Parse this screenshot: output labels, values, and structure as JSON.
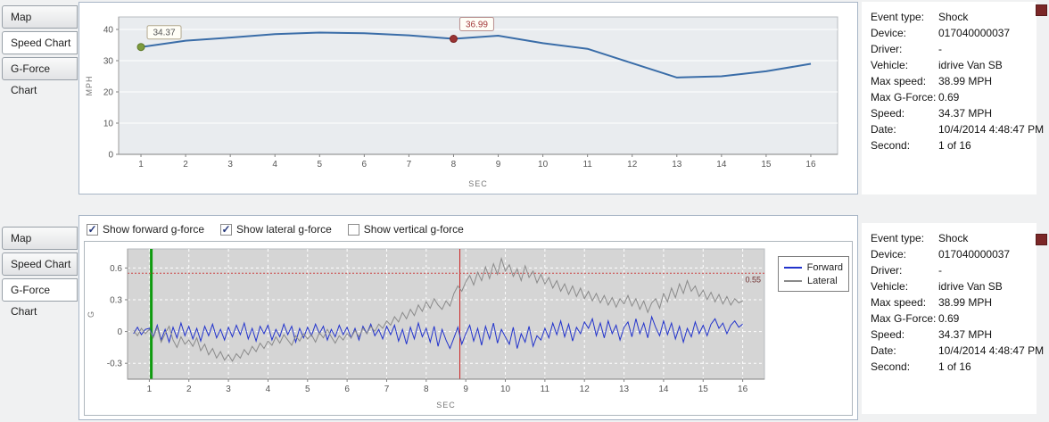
{
  "tabs": [
    {
      "label": "Map"
    },
    {
      "label": "Speed Chart"
    },
    {
      "label": "G-Force Chart"
    }
  ],
  "top_panel": {
    "selected_tab": "Speed Chart"
  },
  "bottom_panel": {
    "selected_tab": "G-Force Chart",
    "checkboxes": [
      {
        "label": "Show forward g-force",
        "checked": true
      },
      {
        "label": "Show lateral g-force",
        "checked": true
      },
      {
        "label": "Show vertical g-force",
        "checked": false
      }
    ]
  },
  "info_panel": {
    "rows": [
      {
        "label": "Event type:",
        "value": "Shock"
      },
      {
        "label": "Device:",
        "value": "017040000037"
      },
      {
        "label": "Driver:",
        "value": "-"
      },
      {
        "label": "Vehicle:",
        "value": "idrive Van SB"
      },
      {
        "label": "Max speed:",
        "value": "38.99 MPH"
      },
      {
        "label": "Max G-Force:",
        "value": "0.69"
      },
      {
        "label": "Speed:",
        "value": "34.37 MPH"
      },
      {
        "label": "Date:",
        "value": "10/4/2014 4:48:47 PM"
      },
      {
        "label": "Second:",
        "value": "1 of 16"
      }
    ]
  },
  "chart_data": [
    {
      "type": "line",
      "name": "speed-chart",
      "xlabel": "SEC",
      "ylabel": "MPH",
      "xticks": [
        1,
        2,
        3,
        4,
        5,
        6,
        7,
        8,
        9,
        10,
        11,
        12,
        13,
        14,
        15,
        16
      ],
      "yticks": [
        0,
        10,
        20,
        30,
        40
      ],
      "xlim": [
        0.5,
        16.6
      ],
      "ylim": [
        0,
        44
      ],
      "plot_bg": "#e9ecef",
      "grid": "horizontal-white",
      "x": [
        1,
        2,
        3,
        4,
        5,
        6,
        7,
        8,
        9,
        10,
        11,
        12,
        13,
        14,
        15,
        16
      ],
      "series": [
        {
          "name": "Speed",
          "color": "#3a6da8",
          "width": 2,
          "values": [
            34.37,
            36.4,
            37.4,
            38.5,
            39.0,
            38.8,
            38.1,
            36.99,
            38.0,
            35.6,
            33.8,
            29.2,
            24.6,
            25.0,
            26.6,
            29.0
          ]
        }
      ],
      "markers": [
        {
          "x": 1,
          "y": 34.37,
          "label": "34.37",
          "fill": "#7d9b3d",
          "stroke": "#5f7a2a",
          "box_border": "#b3a98f",
          "text_color": "#555555"
        },
        {
          "x": 8,
          "y": 36.99,
          "label": "36.99",
          "fill": "#993333",
          "stroke": "#7a2424",
          "box_border": "#b98f8f",
          "text_color": "#a33b3b"
        }
      ]
    },
    {
      "type": "line",
      "name": "gforce-chart",
      "xlabel": "SEC",
      "ylabel": "G",
      "xticks": [
        1,
        2,
        3,
        4,
        5,
        6,
        7,
        8,
        9,
        10,
        11,
        12,
        13,
        14,
        15,
        16
      ],
      "yticks": [
        -0.3,
        0,
        0.3,
        0.6
      ],
      "xlim": [
        0.45,
        16.55
      ],
      "ylim": [
        -0.45,
        0.78
      ],
      "plot_bg": "#d5d5d5",
      "grid": "dashed-white-both",
      "x_start": 0.6,
      "x_step": 0.1,
      "reference_line": {
        "y": 0.55,
        "label": "0.55",
        "color": "#cc4444",
        "label_color": "#703030"
      },
      "vertical_lines": [
        {
          "x": 1.05,
          "color": "#0f9b0f",
          "width": 3
        },
        {
          "x": 8.85,
          "color": "#cc2222",
          "width": 1
        }
      ],
      "series": [
        {
          "name": "Forward",
          "color": "#2233cc",
          "width": 1,
          "values": [
            -0.02,
            0.04,
            -0.03,
            0.02,
            0.03,
            -0.05,
            0.06,
            -0.08,
            0.02,
            -0.1,
            0.04,
            -0.06,
            0.08,
            -0.04,
            0.05,
            -0.07,
            0.03,
            -0.09,
            0.05,
            -0.04,
            0.07,
            -0.06,
            0.02,
            -0.08,
            0.04,
            -0.05,
            0.06,
            -0.03,
            0.08,
            -0.07,
            0.03,
            -0.09,
            0.05,
            -0.02,
            0.06,
            -0.08,
            0.02,
            -0.05,
            0.07,
            -0.03,
            0.05,
            -0.1,
            0.03,
            -0.06,
            0.04,
            -0.04,
            0.07,
            -0.02,
            0.05,
            -0.08,
            0.02,
            -0.05,
            0.06,
            -0.03,
            0.04,
            -0.06,
            0.03,
            -0.08,
            0.05,
            -0.02,
            0.07,
            -0.04,
            0.02,
            -0.07,
            0.05,
            -0.03,
            0.06,
            -0.09,
            0.02,
            -0.12,
            0.04,
            -0.07,
            0.08,
            -0.05,
            0.03,
            -0.1,
            0.05,
            -0.14,
            0.02,
            -0.08,
            -0.16,
            -0.06,
            0.04,
            -0.12,
            -0.02,
            0.06,
            -0.09,
            0.03,
            -0.13,
            0.05,
            -0.07,
            0.08,
            -0.11,
            0.02,
            -0.05,
            -0.12,
            0.04,
            -0.16,
            -0.02,
            -0.1,
            0.05,
            -0.14,
            -0.04,
            -0.08,
            0.03,
            -0.06,
            0.08,
            -0.03,
            0.1,
            -0.05,
            0.07,
            -0.09,
            0.04,
            -0.02,
            0.09,
            0.03,
            0.12,
            -0.04,
            0.08,
            -0.06,
            0.1,
            -0.02,
            0.06,
            -0.08,
            0.04,
            0.09,
            -0.05,
            0.12,
            -0.02,
            0.08,
            -0.06,
            0.14,
            0.04,
            -0.04,
            0.1,
            -0.03,
            0.08,
            -0.07,
            0.05,
            -0.1,
            0.03,
            -0.05,
            0.09,
            -0.02,
            0.06,
            -0.04,
            0.07,
            0.12,
            0.03,
            0.08,
            -0.02,
            0.06,
            0.1,
            0.04,
            0.07
          ]
        },
        {
          "name": "Lateral",
          "color": "#8a8a8a",
          "width": 1,
          "values": [
            0.01,
            -0.04,
            0.03,
            -0.02,
            0.02,
            -0.06,
            0.04,
            -0.1,
            -0.02,
            0.05,
            -0.08,
            -0.15,
            -0.05,
            -0.12,
            -0.08,
            -0.14,
            -0.06,
            -0.18,
            -0.12,
            -0.22,
            -0.16,
            -0.25,
            -0.19,
            -0.27,
            -0.22,
            -0.28,
            -0.21,
            -0.25,
            -0.17,
            -0.22,
            -0.14,
            -0.19,
            -0.11,
            -0.16,
            -0.09,
            -0.13,
            -0.05,
            -0.11,
            -0.03,
            -0.08,
            -0.13,
            -0.04,
            -0.09,
            -0.02,
            -0.07,
            -0.03,
            -0.1,
            -0.01,
            -0.06,
            0.02,
            -0.05,
            -0.11,
            -0.04,
            -0.08,
            -0.02,
            -0.06,
            0.01,
            -0.05,
            0.03,
            -0.02,
            0.05,
            0.0,
            0.07,
            0.03,
            0.1,
            0.06,
            0.14,
            0.09,
            0.18,
            0.12,
            0.21,
            0.15,
            0.25,
            0.19,
            0.28,
            0.22,
            0.31,
            0.25,
            0.21,
            0.29,
            0.24,
            0.36,
            0.43,
            0.38,
            0.47,
            0.53,
            0.44,
            0.56,
            0.48,
            0.61,
            0.5,
            0.64,
            0.54,
            0.69,
            0.57,
            0.63,
            0.52,
            0.59,
            0.48,
            0.62,
            0.51,
            0.57,
            0.46,
            0.54,
            0.45,
            0.51,
            0.41,
            0.48,
            0.38,
            0.45,
            0.35,
            0.43,
            0.33,
            0.41,
            0.31,
            0.38,
            0.29,
            0.36,
            0.27,
            0.34,
            0.25,
            0.32,
            0.23,
            0.31,
            0.26,
            0.34,
            0.24,
            0.31,
            0.21,
            0.29,
            0.18,
            0.27,
            0.31,
            0.22,
            0.36,
            0.28,
            0.41,
            0.32,
            0.45,
            0.36,
            0.48,
            0.38,
            0.43,
            0.33,
            0.39,
            0.3,
            0.37,
            0.28,
            0.35,
            0.26,
            0.33,
            0.25,
            0.31,
            0.27,
            0.29
          ]
        }
      ],
      "legend": {
        "position": "right-top"
      }
    }
  ]
}
